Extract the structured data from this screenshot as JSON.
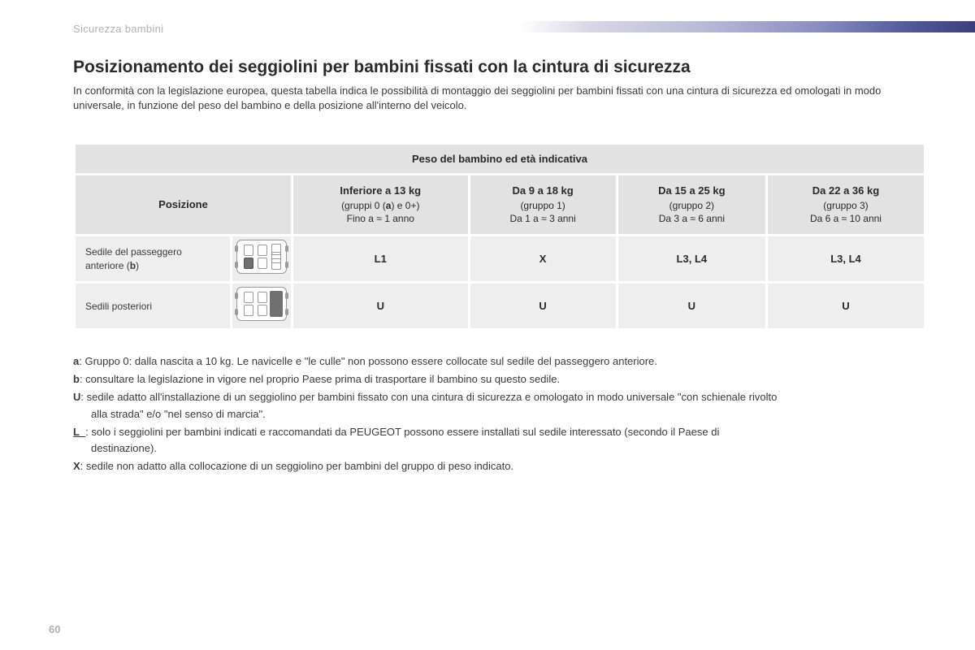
{
  "section_label": "Sicurezza bambini",
  "title": "Posizionamento dei seggiolini per bambini fissati con la cintura di sicurezza",
  "intro": "In conformità con la legislazione europea, questa tabella indica le possibilità di montaggio dei seggiolini per bambini fissati con una cintura di sicurezza ed omologati in modo universale, in funzione del peso del bambino e della posizione all'interno del veicolo.",
  "table": {
    "span_header": "Peso del bambino ed età indicativa",
    "position_header": "Posizione",
    "weight_columns": [
      {
        "bold": "Inferiore a 13 kg",
        "line2_pre": "(gruppi 0 (",
        "line2_ref": "a",
        "line2_post": ") e 0+)",
        "line3": "Fino a ≈ 1 anno"
      },
      {
        "bold": "Da 9 a 18 kg",
        "line2": "(gruppo 1)",
        "line3": "Da 1 a ≈ 3 anni"
      },
      {
        "bold": "Da 15 a 25 kg",
        "line2": "(gruppo 2)",
        "line3": "Da 3 a ≈ 6 anni"
      },
      {
        "bold": "Da 22 a 36 kg",
        "line2": "(gruppo 3)",
        "line3": "Da 6 a ≈ 10 anni"
      }
    ],
    "rows": [
      {
        "label_pre": "Sedile del passeggero anteriore (",
        "label_ref": "b",
        "label_post": ")",
        "icon": "front-passenger",
        "cells": [
          "L1",
          "X",
          "L3, L4",
          "L3, L4"
        ]
      },
      {
        "label": "Sedili posteriori",
        "icon": "rear",
        "cells": [
          "U",
          "U",
          "U",
          "U"
        ]
      }
    ]
  },
  "notes": [
    {
      "key": "a",
      "text": ": Gruppo 0: dalla nascita a 10 kg. Le navicelle e \"le culle\" non possono essere collocate sul sedile del passeggero anteriore."
    },
    {
      "key": "b",
      "text": ": consultare la legislazione in vigore nel proprio Paese prima di trasportare il bambino su questo sedile."
    },
    {
      "key": "U",
      "text": ": sedile adatto all'installazione di un seggiolino per bambini fissato con una cintura di sicurezza e omologato in modo universale \"con schienale rivolto",
      "cont": "alla strada\" e/o \"nel senso di marcia\"."
    },
    {
      "key": "L_",
      "text": ": solo i seggiolini per bambini indicati e raccomandati da PEUGEOT possono essere installati sul sedile interessato (secondo il Paese di",
      "cont": "destinazione)."
    },
    {
      "key": "X",
      "text": ": sedile non adatto alla collocazione di un seggiolino per bambini del gruppo di peso indicato."
    }
  ],
  "page_number": "60",
  "colors": {
    "header_bg": "#e2e2e2",
    "cell_bg": "#eeeeee",
    "section_label": "#b0b0b0",
    "gradient_end": "#3c3f7a"
  }
}
